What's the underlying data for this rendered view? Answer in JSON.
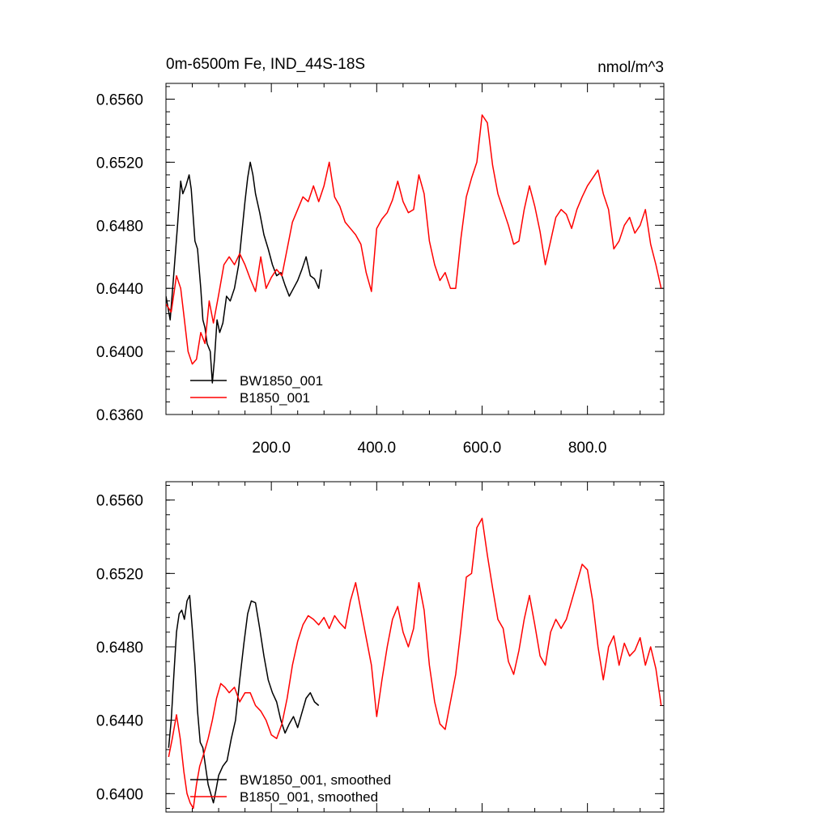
{
  "chart_data": [
    {
      "type": "line",
      "title_left": "0m-6500m Fe, IND_44S-18S",
      "title_right": "nmol/m^3",
      "xlabel": "",
      "ylabel": "",
      "xlim": [
        0,
        945
      ],
      "ylim": [
        0.636,
        0.657
      ],
      "yticks": [
        0.636,
        0.64,
        0.644,
        0.648,
        0.652,
        0.656
      ],
      "ytick_labels": [
        "0.6360",
        "0.6400",
        "0.6440",
        "0.6480",
        "0.6520",
        "0.6560"
      ],
      "xticks": [
        200,
        400,
        600,
        800
      ],
      "xtick_labels": [
        "200.0",
        "400.0",
        "600.0",
        "800.0"
      ],
      "grid": false,
      "legend_position": "bottom-left",
      "series": [
        {
          "name": "BW1850_001",
          "color": "#000000",
          "x": [
            0,
            8,
            15,
            22,
            28,
            32,
            38,
            44,
            48,
            55,
            60,
            66,
            70,
            74,
            78,
            84,
            88,
            92,
            97,
            102,
            108,
            115,
            122,
            130,
            138,
            144,
            150,
            155,
            160,
            165,
            170,
            178,
            186,
            194,
            202,
            210,
            218,
            226,
            234,
            242,
            250,
            258,
            266,
            274,
            282,
            290,
            295
          ],
          "y": [
            0.6435,
            0.642,
            0.645,
            0.648,
            0.6508,
            0.65,
            0.6505,
            0.6512,
            0.6503,
            0.647,
            0.6465,
            0.644,
            0.642,
            0.6415,
            0.6405,
            0.64,
            0.638,
            0.6395,
            0.642,
            0.6412,
            0.6418,
            0.6435,
            0.6432,
            0.644,
            0.6455,
            0.6475,
            0.6495,
            0.651,
            0.652,
            0.6512,
            0.65,
            0.6488,
            0.6474,
            0.6465,
            0.6455,
            0.6448,
            0.645,
            0.6442,
            0.6435,
            0.644,
            0.6445,
            0.6452,
            0.646,
            0.6448,
            0.6446,
            0.644,
            0.6452
          ]
        },
        {
          "name": "B1850_001",
          "color": "#ff0000",
          "x": [
            0,
            10,
            20,
            28,
            35,
            42,
            50,
            58,
            66,
            74,
            82,
            90,
            100,
            110,
            120,
            130,
            140,
            150,
            160,
            170,
            180,
            190,
            200,
            210,
            220,
            230,
            240,
            250,
            260,
            270,
            280,
            290,
            300,
            310,
            320,
            330,
            340,
            350,
            360,
            370,
            380,
            390,
            400,
            410,
            420,
            430,
            440,
            450,
            460,
            470,
            480,
            490,
            500,
            510,
            520,
            530,
            540,
            550,
            560,
            570,
            580,
            590,
            600,
            610,
            620,
            630,
            640,
            650,
            660,
            670,
            680,
            690,
            700,
            710,
            720,
            730,
            740,
            750,
            760,
            770,
            780,
            790,
            800,
            810,
            820,
            830,
            840,
            850,
            860,
            870,
            880,
            890,
            900,
            910,
            920,
            930,
            940
          ],
          "y": [
            0.643,
            0.6425,
            0.6448,
            0.644,
            0.642,
            0.64,
            0.6392,
            0.6395,
            0.6412,
            0.6405,
            0.6432,
            0.6418,
            0.6436,
            0.6455,
            0.646,
            0.6455,
            0.6462,
            0.6455,
            0.6446,
            0.6438,
            0.646,
            0.644,
            0.6447,
            0.6452,
            0.6448,
            0.6465,
            0.6482,
            0.649,
            0.6498,
            0.6495,
            0.6505,
            0.6495,
            0.6505,
            0.652,
            0.6498,
            0.6492,
            0.6482,
            0.6478,
            0.6474,
            0.6468,
            0.645,
            0.6438,
            0.6478,
            0.6484,
            0.6488,
            0.6496,
            0.6508,
            0.6495,
            0.6488,
            0.649,
            0.6512,
            0.65,
            0.647,
            0.6455,
            0.6445,
            0.645,
            0.644,
            0.644,
            0.6472,
            0.6498,
            0.651,
            0.652,
            0.655,
            0.6545,
            0.6518,
            0.65,
            0.649,
            0.648,
            0.6468,
            0.647,
            0.649,
            0.6505,
            0.6492,
            0.6476,
            0.6455,
            0.647,
            0.6485,
            0.649,
            0.6487,
            0.6478,
            0.649,
            0.6498,
            0.6505,
            0.651,
            0.6515,
            0.65,
            0.649,
            0.6465,
            0.647,
            0.648,
            0.6485,
            0.6475,
            0.648,
            0.649,
            0.6468,
            0.6455,
            0.644
          ]
        }
      ]
    },
    {
      "type": "line",
      "xlim": [
        0,
        945
      ],
      "ylim": [
        0.639,
        0.657
      ],
      "yticks": [
        0.64,
        0.644,
        0.648,
        0.652,
        0.656
      ],
      "ytick_labels": [
        "0.6400",
        "0.6440",
        "0.6480",
        "0.6520",
        "0.6560"
      ],
      "xticks": [
        200,
        400,
        600,
        800
      ],
      "grid": false,
      "legend_position": "bottom-left",
      "series": [
        {
          "name": "BW1850_001, smoothed",
          "color": "#000000",
          "x": [
            5,
            10,
            15,
            20,
            25,
            30,
            35,
            40,
            45,
            50,
            55,
            60,
            65,
            70,
            75,
            80,
            85,
            90,
            95,
            100,
            108,
            116,
            124,
            132,
            140,
            148,
            155,
            162,
            170,
            178,
            186,
            194,
            202,
            210,
            218,
            226,
            234,
            242,
            250,
            258,
            266,
            274,
            282,
            290
          ],
          "y": [
            0.6425,
            0.644,
            0.6465,
            0.6488,
            0.6498,
            0.65,
            0.6495,
            0.6505,
            0.6508,
            0.649,
            0.647,
            0.6445,
            0.6428,
            0.6425,
            0.6415,
            0.6405,
            0.64,
            0.6395,
            0.6402,
            0.641,
            0.6415,
            0.6418,
            0.643,
            0.644,
            0.6462,
            0.6482,
            0.6498,
            0.6505,
            0.6504,
            0.649,
            0.6475,
            0.6462,
            0.6455,
            0.645,
            0.644,
            0.6433,
            0.6438,
            0.6442,
            0.6436,
            0.6444,
            0.6452,
            0.6455,
            0.645,
            0.6448
          ]
        },
        {
          "name": "B1850_001, smoothed",
          "color": "#ff0000",
          "x": [
            5,
            12,
            20,
            27,
            34,
            40,
            46,
            52,
            58,
            64,
            72,
            80,
            88,
            96,
            104,
            112,
            120,
            130,
            140,
            150,
            160,
            170,
            180,
            190,
            200,
            210,
            220,
            230,
            240,
            250,
            260,
            270,
            280,
            290,
            300,
            310,
            320,
            330,
            340,
            350,
            360,
            370,
            380,
            390,
            400,
            410,
            420,
            430,
            440,
            450,
            460,
            470,
            480,
            490,
            500,
            510,
            520,
            530,
            540,
            550,
            560,
            570,
            580,
            590,
            600,
            610,
            620,
            630,
            640,
            650,
            660,
            670,
            680,
            690,
            700,
            710,
            720,
            730,
            740,
            750,
            760,
            770,
            780,
            790,
            800,
            810,
            820,
            830,
            840,
            850,
            860,
            870,
            880,
            890,
            900,
            910,
            920,
            930,
            940
          ],
          "y": [
            0.642,
            0.643,
            0.6443,
            0.643,
            0.6412,
            0.64,
            0.6395,
            0.6392,
            0.6405,
            0.6415,
            0.6422,
            0.643,
            0.644,
            0.6452,
            0.646,
            0.6458,
            0.6455,
            0.6458,
            0.645,
            0.6455,
            0.6455,
            0.6448,
            0.6445,
            0.644,
            0.6432,
            0.643,
            0.6438,
            0.6452,
            0.647,
            0.6483,
            0.6492,
            0.6497,
            0.6495,
            0.6492,
            0.6496,
            0.649,
            0.6497,
            0.6493,
            0.649,
            0.6505,
            0.6515,
            0.65,
            0.6485,
            0.647,
            0.6442,
            0.6462,
            0.648,
            0.6495,
            0.6502,
            0.6488,
            0.648,
            0.649,
            0.6515,
            0.65,
            0.647,
            0.645,
            0.6438,
            0.6435,
            0.645,
            0.6465,
            0.649,
            0.6518,
            0.652,
            0.6545,
            0.655,
            0.653,
            0.6512,
            0.6495,
            0.649,
            0.6472,
            0.6465,
            0.6478,
            0.6495,
            0.6508,
            0.6492,
            0.6475,
            0.647,
            0.6488,
            0.6495,
            0.649,
            0.6495,
            0.6505,
            0.6515,
            0.6525,
            0.6522,
            0.6505,
            0.648,
            0.6462,
            0.648,
            0.6486,
            0.647,
            0.6482,
            0.6475,
            0.6478,
            0.6485,
            0.647,
            0.648,
            0.6468,
            0.6448
          ]
        }
      ]
    }
  ]
}
